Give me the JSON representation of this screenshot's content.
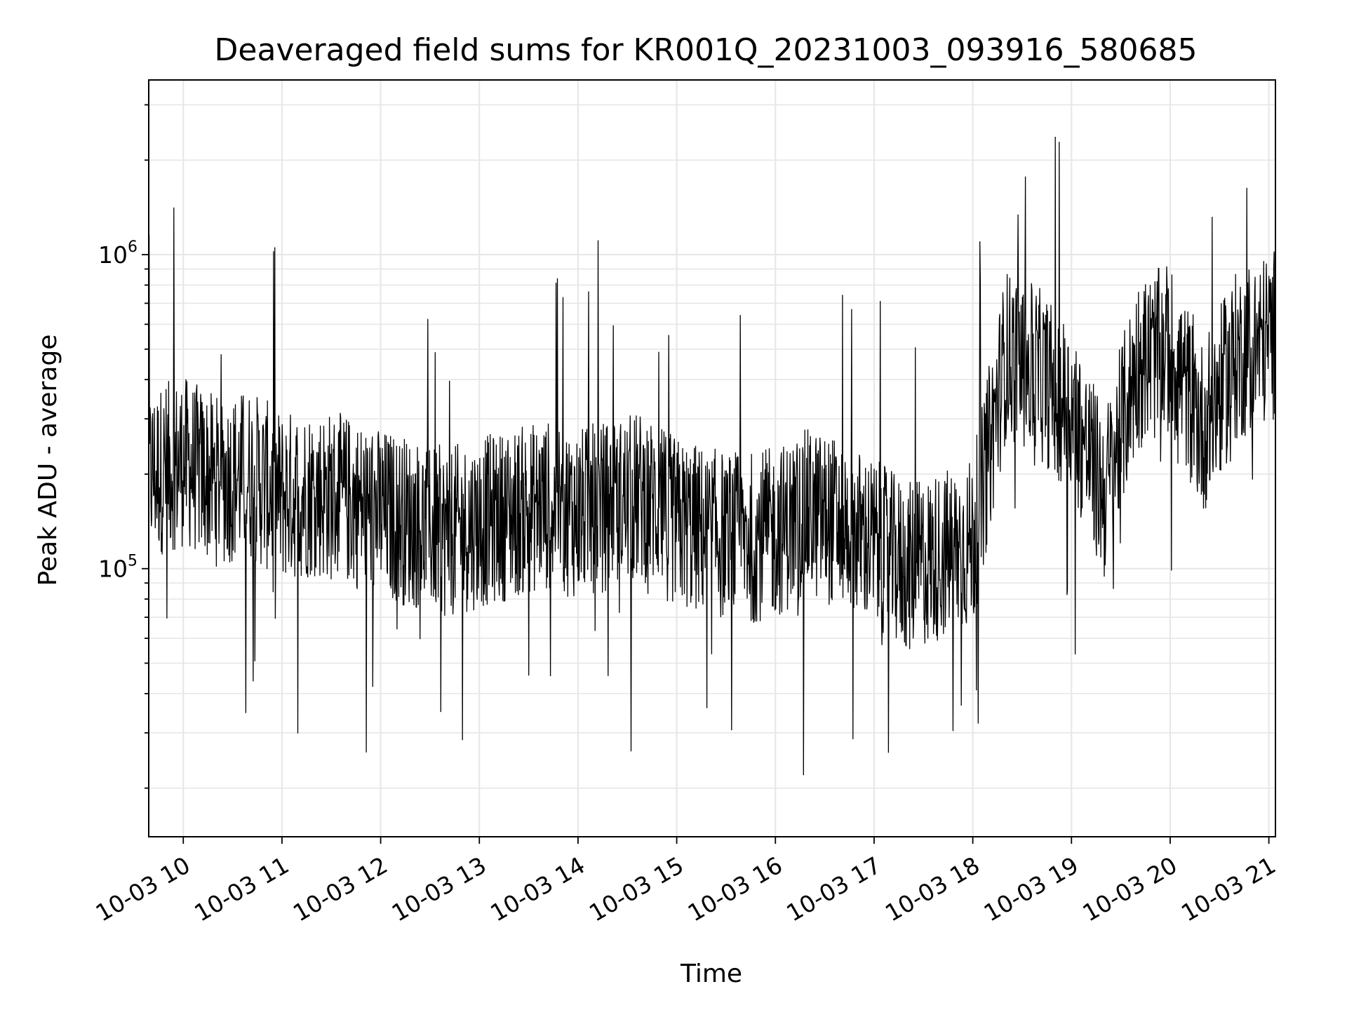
{
  "chart_data": {
    "type": "line",
    "title": "Deaveraged field sums for KR001Q_20231003_093916_580685",
    "xlabel": "Time",
    "ylabel": "Peak ADU - average",
    "yscale": "log",
    "ylim": [
      14000,
      3600000
    ],
    "xlim": [
      "2023-10-03 09:39",
      "2023-10-03 21:04"
    ],
    "grid": true,
    "grid_color": "#e6e6e6",
    "line_color": "#000000",
    "x_ticks": [
      "10-03 10",
      "10-03 11",
      "10-03 12",
      "10-03 13",
      "10-03 14",
      "10-03 15",
      "10-03 16",
      "10-03 17",
      "10-03 18",
      "10-03 19",
      "10-03 20",
      "10-03 21"
    ],
    "y_ticks": [
      {
        "value": 100000,
        "base": "10",
        "exp": "5"
      },
      {
        "value": 1000000,
        "base": "10",
        "exp": "6"
      }
    ],
    "series": [
      {
        "x": [
          "2023-10-03 09:39",
          "2023-10-03 10:00",
          "2023-10-03 10:20",
          "2023-10-03 10:40",
          "2023-10-03 11:00",
          "2023-10-03 11:20",
          "2023-10-03 11:40",
          "2023-10-03 12:00",
          "2023-10-03 12:20",
          "2023-10-03 12:40",
          "2023-10-03 13:00",
          "2023-10-03 13:20",
          "2023-10-03 13:40",
          "2023-10-03 14:00",
          "2023-10-03 14:20",
          "2023-10-03 14:40",
          "2023-10-03 15:00",
          "2023-10-03 15:20",
          "2023-10-03 15:40",
          "2023-10-03 16:00",
          "2023-10-03 16:20",
          "2023-10-03 16:40",
          "2023-10-03 17:00",
          "2023-10-03 17:20",
          "2023-10-03 17:40",
          "2023-10-03 18:00",
          "2023-10-03 18:20",
          "2023-10-03 18:40",
          "2023-10-03 19:00",
          "2023-10-03 19:20",
          "2023-10-03 19:40",
          "2023-10-03 20:00",
          "2023-10-03 20:20",
          "2023-10-03 20:40",
          "2023-10-03 21:04"
        ],
        "y": [
          200000,
          220000,
          190000,
          200000,
          170000,
          175000,
          165000,
          150000,
          140000,
          130000,
          140000,
          150000,
          160000,
          150000,
          160000,
          170000,
          140000,
          130000,
          125000,
          130000,
          150000,
          140000,
          120000,
          100000,
          110000,
          120000,
          480000,
          420000,
          320000,
          170000,
          450000,
          500000,
          280000,
          470000,
          560000
        ]
      }
    ]
  }
}
